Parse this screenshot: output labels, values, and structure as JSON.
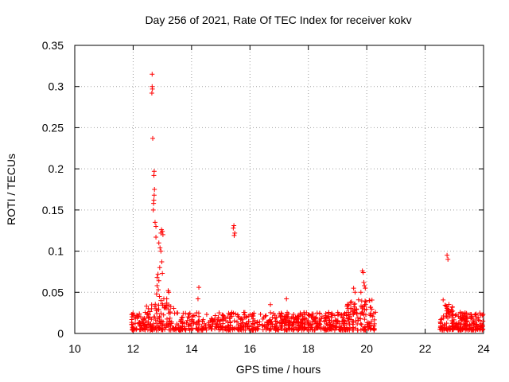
{
  "chart_data": {
    "type": "scatter",
    "title": "Day 256 of 2021, Rate Of TEC Index for receiver kokv",
    "xlabel": "GPS time / hours",
    "ylabel": "ROTI / TECUs",
    "xlim": [
      10,
      24
    ],
    "ylim": [
      0,
      0.35
    ],
    "xticks": [
      "10",
      "12",
      "14",
      "16",
      "18",
      "20",
      "22",
      "24"
    ],
    "yticks": [
      "0",
      "0.05",
      "0.1",
      "0.15",
      "0.2",
      "0.25",
      "0.3",
      "0.35"
    ],
    "grid": true,
    "marker": "+",
    "color": "#ff0000",
    "notes": "Dense band of points between 0 and ~0.03 TECU from ~12.0h to ~20.3h and from ~22.5h to 24h; gap 20.3h–22.5h",
    "points": [
      [
        12.65,
        0.315
      ],
      [
        12.65,
        0.3
      ],
      [
        12.66,
        0.297
      ],
      [
        12.64,
        0.292
      ],
      [
        12.67,
        0.237
      ],
      [
        12.72,
        0.197
      ],
      [
        12.71,
        0.192
      ],
      [
        12.73,
        0.175
      ],
      [
        12.72,
        0.168
      ],
      [
        12.71,
        0.162
      ],
      [
        12.7,
        0.158
      ],
      [
        12.69,
        0.15
      ],
      [
        12.75,
        0.135
      ],
      [
        12.78,
        0.13
      ],
      [
        12.78,
        0.117
      ],
      [
        12.97,
        0.126
      ],
      [
        13.0,
        0.124
      ],
      [
        12.95,
        0.122
      ],
      [
        13.02,
        0.12
      ],
      [
        12.88,
        0.11
      ],
      [
        12.92,
        0.104
      ],
      [
        12.95,
        0.1
      ],
      [
        12.98,
        0.087
      ],
      [
        12.91,
        0.08
      ],
      [
        12.85,
        0.072
      ],
      [
        12.82,
        0.068
      ],
      [
        13.0,
        0.073
      ],
      [
        12.88,
        0.064
      ],
      [
        12.82,
        0.058
      ],
      [
        12.86,
        0.053
      ],
      [
        12.8,
        0.048
      ],
      [
        12.9,
        0.045
      ],
      [
        12.95,
        0.04
      ],
      [
        13.05,
        0.042
      ],
      [
        13.2,
        0.052
      ],
      [
        13.22,
        0.05
      ],
      [
        13.15,
        0.042
      ],
      [
        14.25,
        0.056
      ],
      [
        14.22,
        0.042
      ],
      [
        15.45,
        0.131
      ],
      [
        15.43,
        0.128
      ],
      [
        15.48,
        0.122
      ],
      [
        15.46,
        0.119
      ],
      [
        16.7,
        0.035
      ],
      [
        17.25,
        0.042
      ],
      [
        19.55,
        0.055
      ],
      [
        19.6,
        0.05
      ],
      [
        19.85,
        0.076
      ],
      [
        19.88,
        0.074
      ],
      [
        19.9,
        0.062
      ],
      [
        19.92,
        0.058
      ],
      [
        19.95,
        0.055
      ],
      [
        19.8,
        0.05
      ],
      [
        20.1,
        0.04
      ],
      [
        22.75,
        0.095
      ],
      [
        22.78,
        0.09
      ]
    ]
  }
}
